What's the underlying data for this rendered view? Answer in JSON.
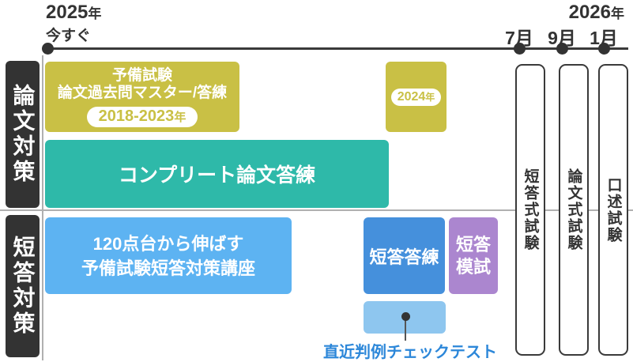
{
  "colors": {
    "olive": "#c9c045",
    "teal": "#2eb9a9",
    "sky-blue": "#5db3f2",
    "mid-blue": "#4590dc",
    "purple": "#ab86cf",
    "pale-blue": "#8ec6ef",
    "link-blue": "#2c87d9",
    "ink": "#333333",
    "line-gray": "#b0b0b0"
  },
  "timeline": {
    "start": {
      "year": "2025",
      "year_suffix": "年",
      "label": "今すぐ"
    },
    "end": {
      "year": "2026",
      "year_suffix": "年"
    },
    "milestones": [
      {
        "label": "7月"
      },
      {
        "label": "9月"
      },
      {
        "label": "1月"
      }
    ]
  },
  "sections": {
    "ronbun": "論文対策",
    "tanto": "短答対策"
  },
  "courses": {
    "kakomon_master": {
      "line1": "予備試験",
      "line2": "論文過去問マスター/答練",
      "badge": "2018-2023",
      "badge_suffix": "年"
    },
    "kakomon_2024": {
      "badge": "2024",
      "badge_suffix": "年"
    },
    "complete_ronbun": {
      "label": "コンプリート論文答練"
    },
    "tanto_kouza": {
      "line1": "120点台から伸ばす",
      "line2": "予備試験短答対策講座"
    },
    "tanto_touren": {
      "label": "短答答練"
    },
    "tanto_moshi": {
      "line1": "短答",
      "line2": "模試"
    },
    "hanrei_check": {
      "label": "直近判例チェックテスト"
    }
  },
  "exams": [
    {
      "label": "短答式試験"
    },
    {
      "label": "論文式試験"
    },
    {
      "label": "口述試験"
    }
  ]
}
